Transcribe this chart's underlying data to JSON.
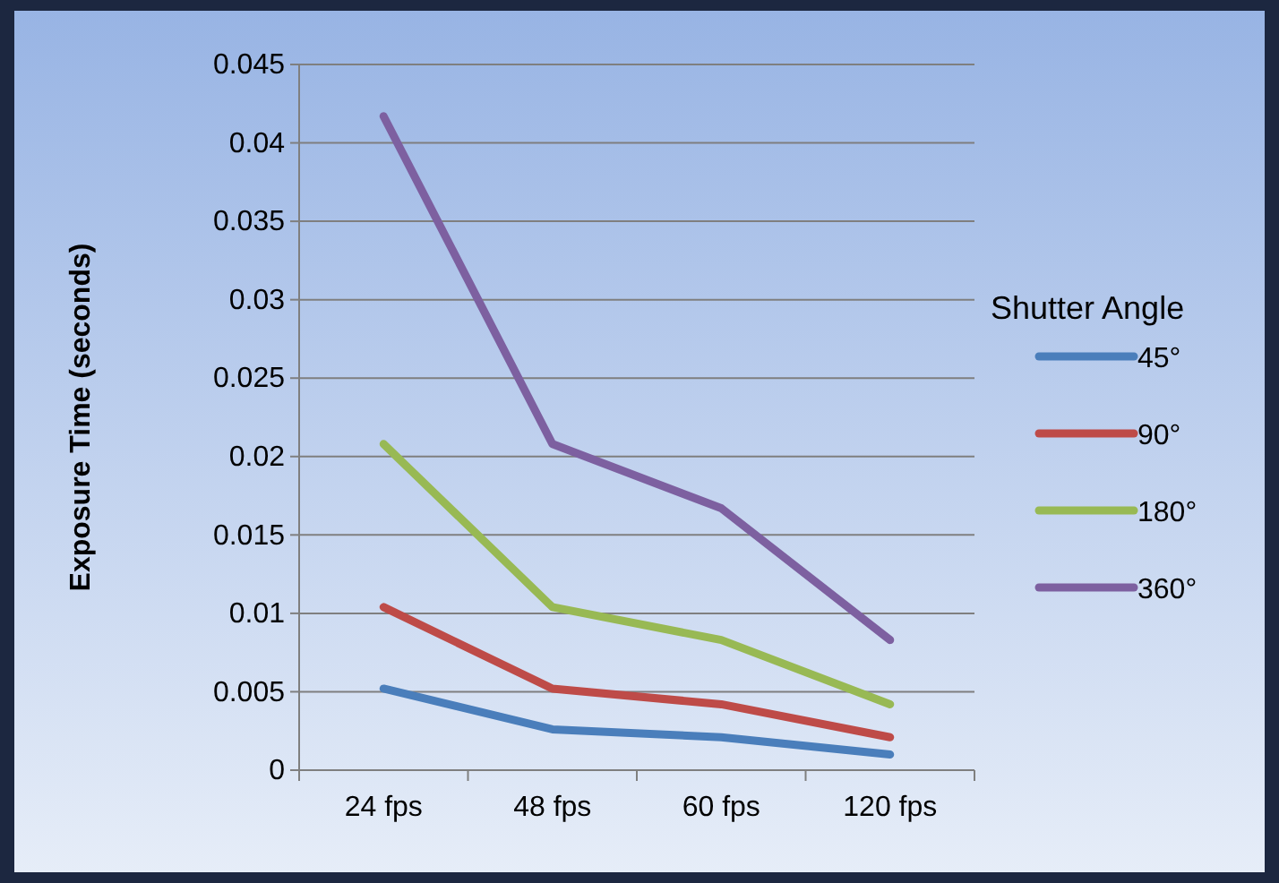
{
  "chart_data": {
    "type": "line",
    "ylabel": "Exposure Time (seconds)",
    "legend_title": "Shutter Angle",
    "categories": [
      "24 fps",
      "48 fps",
      "60 fps",
      "120 fps"
    ],
    "series": [
      {
        "name": "45°",
        "color": "#4a7ebb",
        "values": [
          0.0052,
          0.0026,
          0.0021,
          0.001
        ]
      },
      {
        "name": "90°",
        "color": "#be4b48",
        "values": [
          0.0104,
          0.0052,
          0.0042,
          0.0021
        ]
      },
      {
        "name": "180°",
        "color": "#98b954",
        "values": [
          0.0208,
          0.0104,
          0.0083,
          0.0042
        ]
      },
      {
        "name": "360°",
        "color": "#7d60a0",
        "values": [
          0.0417,
          0.0208,
          0.0167,
          0.0083
        ]
      }
    ],
    "ylim": [
      0,
      0.045
    ],
    "yticks": [
      0,
      0.005,
      0.01,
      0.015,
      0.02,
      0.025,
      0.03,
      0.035,
      0.04,
      0.045
    ],
    "grid": "y",
    "legend": "right",
    "marker": "none",
    "line_style": "solid"
  }
}
